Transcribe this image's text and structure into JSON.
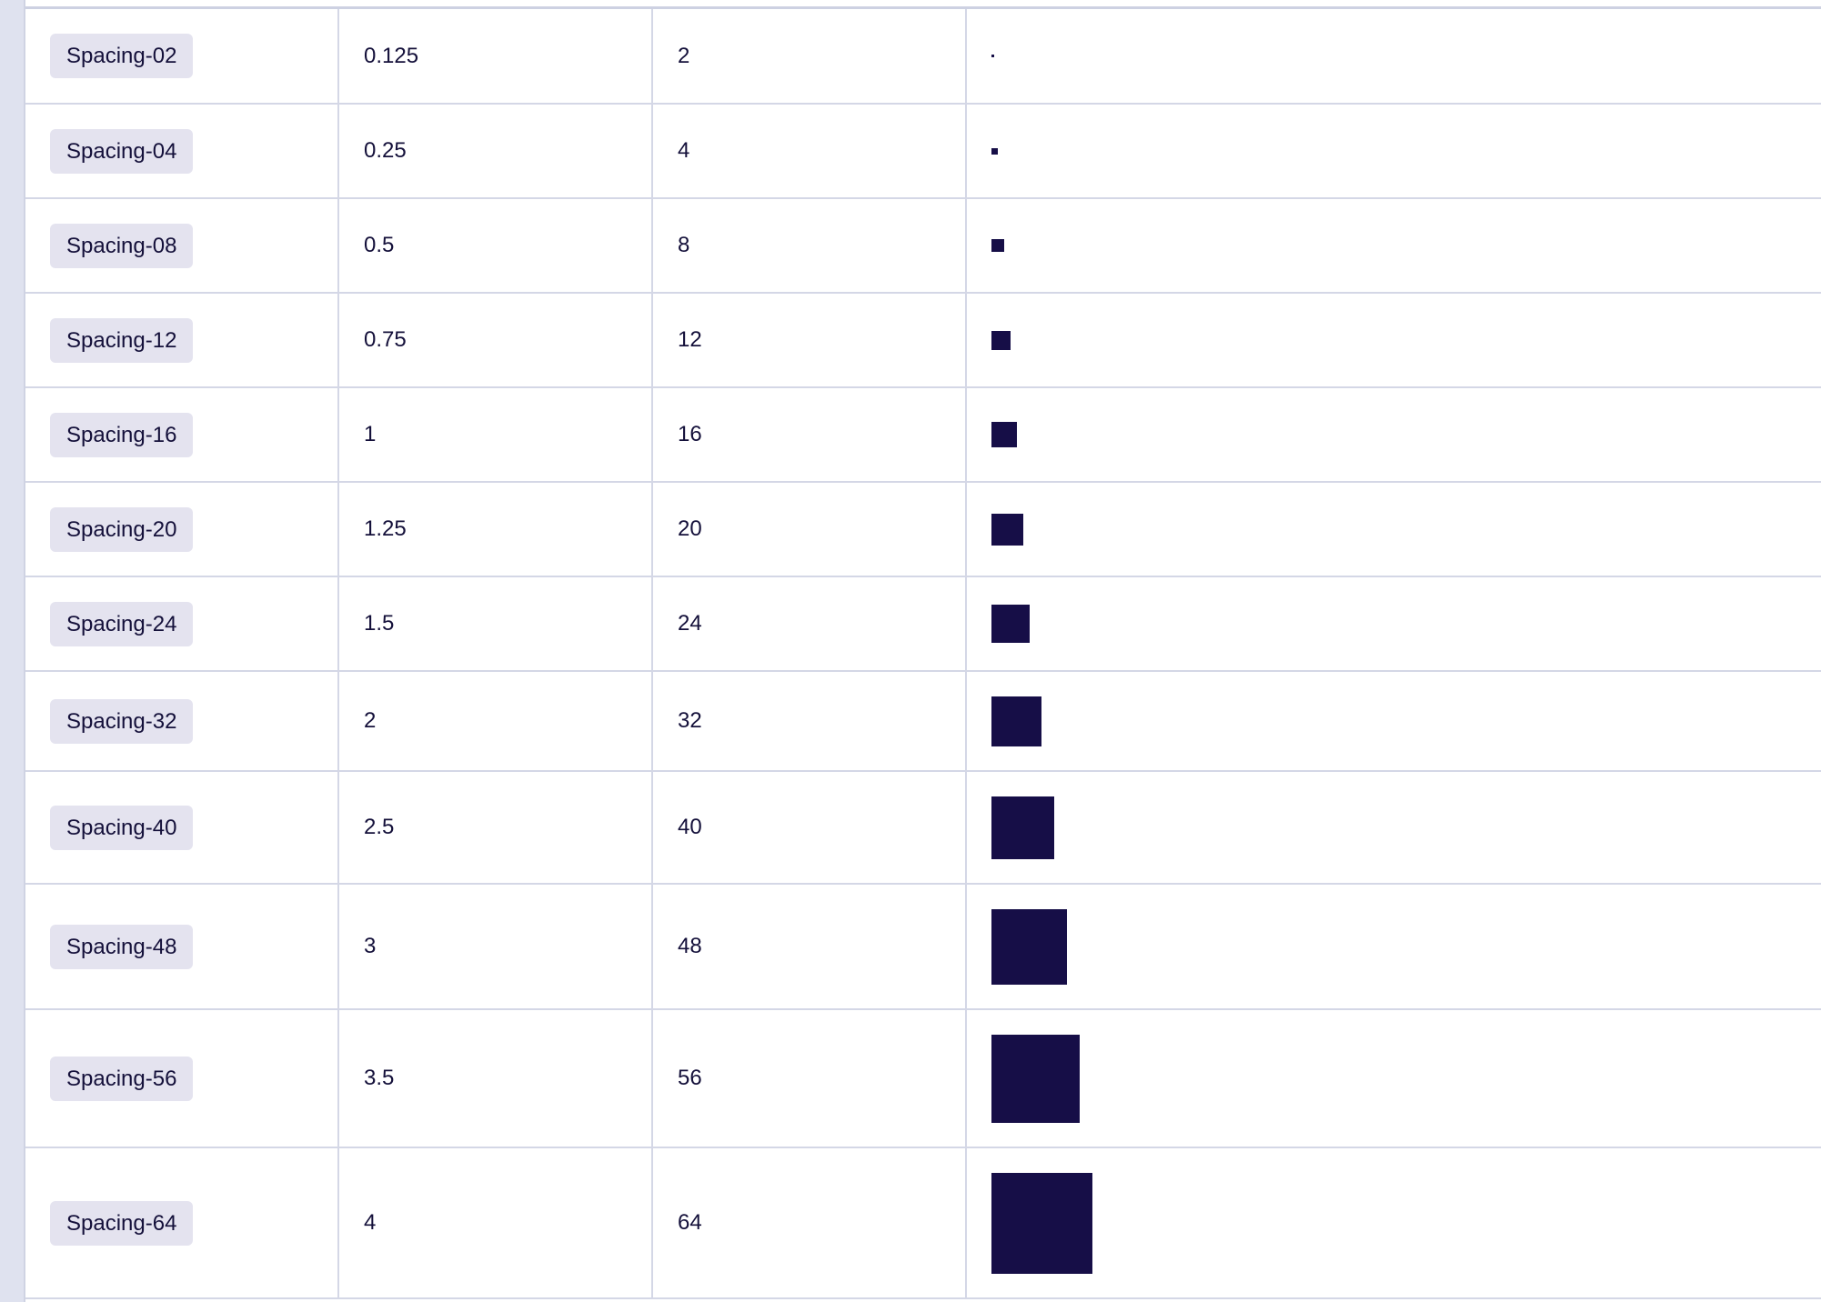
{
  "colors": {
    "swatch": "#160e47",
    "badge_bg": "#e4e3ef",
    "border": "#d4d7e6",
    "rail": "#dfe2ef",
    "text": "#14103a"
  },
  "spacing_table": {
    "rows": [
      {
        "token": "Spacing-02",
        "rem": "0.125",
        "px": "2"
      },
      {
        "token": "Spacing-04",
        "rem": "0.25",
        "px": "4"
      },
      {
        "token": "Spacing-08",
        "rem": "0.5",
        "px": "8"
      },
      {
        "token": "Spacing-12",
        "rem": "0.75",
        "px": "12"
      },
      {
        "token": "Spacing-16",
        "rem": "1",
        "px": "16"
      },
      {
        "token": "Spacing-20",
        "rem": "1.25",
        "px": "20"
      },
      {
        "token": "Spacing-24",
        "rem": "1.5",
        "px": "24"
      },
      {
        "token": "Spacing-32",
        "rem": "2",
        "px": "32"
      },
      {
        "token": "Spacing-40",
        "rem": "2.5",
        "px": "40"
      },
      {
        "token": "Spacing-48",
        "rem": "3",
        "px": "48"
      },
      {
        "token": "Spacing-56",
        "rem": "3.5",
        "px": "56"
      },
      {
        "token": "Spacing-64",
        "rem": "4",
        "px": "64"
      }
    ]
  }
}
